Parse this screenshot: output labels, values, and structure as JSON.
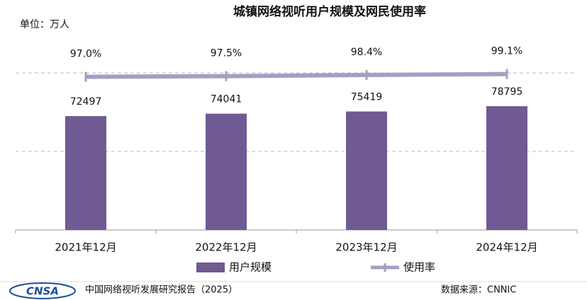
{
  "chart_data": {
    "type": "bar_line",
    "title": "城镇网络视听用户规模及网民使用率",
    "unit_label": "单位：万人",
    "categories": [
      "2021年12月",
      "2022年12月",
      "2023年12月",
      "2024年12月"
    ],
    "series": [
      {
        "name": "用户规模",
        "type": "bar",
        "color": "#6f5a93",
        "values": [
          72497,
          74041,
          75419,
          78795
        ]
      },
      {
        "name": "使用率",
        "type": "line",
        "axis": "y2",
        "color": "#a99cc4",
        "values": [
          97.0,
          97.5,
          98.4,
          99.1
        ],
        "value_labels": [
          "97.0%",
          "97.5%",
          "98.4%",
          "99.1%"
        ]
      }
    ],
    "ylim": [
      0,
      100000
    ],
    "yticks": [
      0,
      50000,
      100000
    ],
    "y2lim": [
      -20,
      100
    ],
    "grid": true,
    "legend": "bottom",
    "footer": {
      "report": "中国网络视听发展研究报告（2025）",
      "logo": "CNSA",
      "source": "数据来源：CNNIC"
    }
  }
}
